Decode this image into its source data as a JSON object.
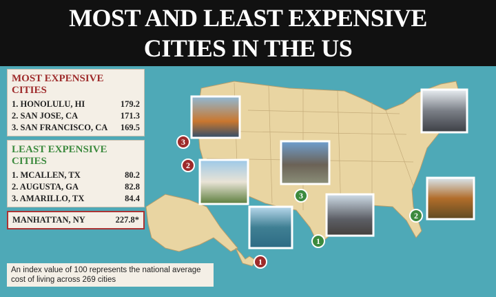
{
  "title": [
    "MOST AND LEAST EXPENSIVE",
    "CITIES IN THE US"
  ],
  "most_expensive": {
    "heading": "MOST EXPENSIVE CITIES",
    "rows": [
      [
        "1. HONOLULU, HI",
        "179.2"
      ],
      [
        "2. SAN JOSE, CA",
        "171.3"
      ],
      [
        "3. SAN FRANCISCO, CA",
        "169.5"
      ]
    ],
    "markers": [
      "1",
      "2",
      "3"
    ]
  },
  "least_expensive": {
    "heading": "LEAST EXPENSIVE CITIES",
    "rows": [
      [
        "1. MCALLEN, TX",
        "80.2"
      ],
      [
        "2. AUGUSTA, GA",
        "82.8"
      ],
      [
        "3. AMARILLO, TX",
        "84.4"
      ]
    ],
    "markers": [
      "1",
      "2",
      "3"
    ]
  },
  "manhattan": [
    "MANHATTAN, NY",
    "227.8*"
  ],
  "note": "An index value of 100 represents the national average cost of living across 269 cities"
}
